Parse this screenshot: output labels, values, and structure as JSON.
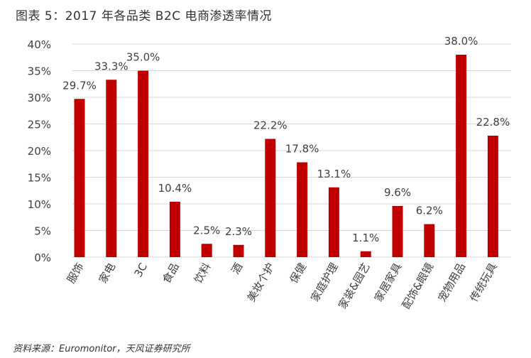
{
  "title": "图表 5：2017 年各品类 B2C 电商渗透率情况",
  "source": "资料来源：Euromonitor，天风证券研究所",
  "chart_data": {
    "type": "bar",
    "title": "图表 5：2017 年各品类 B2C 电商渗透率情况",
    "categories": [
      "服饰",
      "家电",
      "3C",
      "食品",
      "饮料",
      "酒",
      "美妆个护",
      "保健",
      "家庭护理",
      "家装&园艺",
      "家居家具",
      "配饰&眼镜",
      "宠物用品",
      "传统玩具"
    ],
    "values": [
      29.7,
      33.3,
      35.0,
      10.4,
      2.5,
      2.3,
      22.2,
      17.8,
      13.1,
      1.1,
      9.6,
      6.2,
      38.0,
      22.8
    ],
    "data_labels": [
      "29.7%",
      "33.3%",
      "35.0%",
      "10.4%",
      "2.5%",
      "2.3%",
      "22.2%",
      "17.8%",
      "13.1%",
      "1.1%",
      "9.6%",
      "6.2%",
      "38.0%",
      "22.8%"
    ],
    "yticks": [
      "0%",
      "5%",
      "10%",
      "15%",
      "20%",
      "25%",
      "30%",
      "35%",
      "40%"
    ],
    "ylim": [
      0,
      40
    ],
    "ytick_values": [
      0,
      5,
      10,
      15,
      20,
      25,
      30,
      35,
      40
    ],
    "grid": true,
    "legend": "none",
    "bar_color": "#C00000",
    "grid_color": "#D9D9D9"
  }
}
